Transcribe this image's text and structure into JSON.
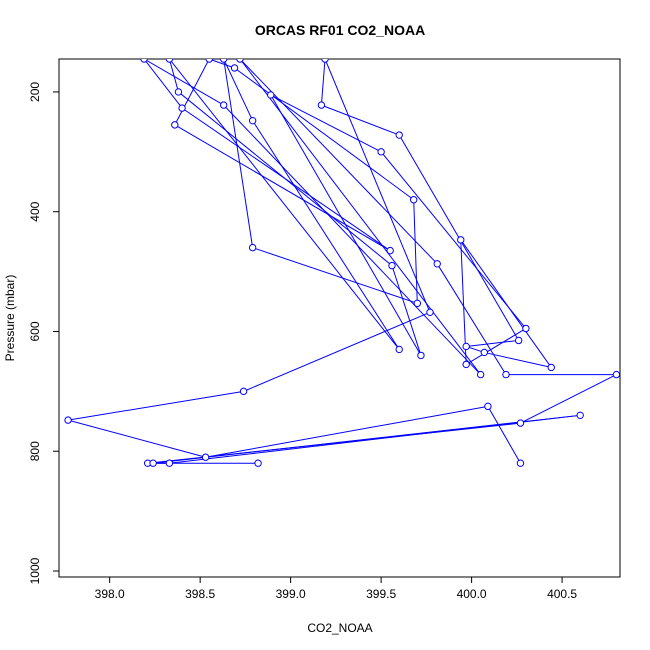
{
  "chart_data": {
    "type": "scatter",
    "title": "ORCAS RF01 CO2_NOAA",
    "xlabel": "CO2_NOAA",
    "ylabel": "Pressure (mbar)",
    "xlim": [
      397.72,
      400.82
    ],
    "ylim": [
      1010,
      145
    ],
    "y_reversed": true,
    "grid": false,
    "xticks": [
      398.0,
      398.5,
      399.0,
      399.5,
      400.0,
      400.5
    ],
    "xtick_labels": [
      "398.0",
      "398.5",
      "399.0",
      "399.5",
      "400.0",
      "400.5"
    ],
    "yticks": [
      200,
      400,
      600,
      800,
      1000
    ],
    "ytick_labels": [
      "200",
      "400",
      "600",
      "800",
      "1000"
    ],
    "series": [
      {
        "color": "#0000ff",
        "marker": "open-circle",
        "connected": true,
        "points": [
          [
            400.27,
            820
          ],
          [
            400.09,
            725
          ],
          [
            398.53,
            810
          ],
          [
            397.77,
            748
          ],
          [
            398.74,
            700
          ],
          [
            399.77,
            568
          ],
          [
            399.19,
            145
          ],
          [
            399.17,
            222
          ],
          [
            399.6,
            272
          ],
          [
            400.26,
            615
          ],
          [
            399.97,
            625
          ],
          [
            400.07,
            635
          ],
          [
            400.44,
            660
          ],
          [
            399.94,
            447
          ],
          [
            399.97,
            655
          ],
          [
            400.3,
            595
          ],
          [
            399.5,
            300
          ],
          [
            398.89,
            205
          ],
          [
            399.72,
            640
          ],
          [
            399.56,
            490
          ],
          [
            398.38,
            200
          ],
          [
            398.33,
            145
          ],
          [
            399.6,
            630
          ],
          [
            398.79,
            248
          ],
          [
            398.63,
            145
          ],
          [
            398.79,
            460
          ],
          [
            399.7,
            553
          ],
          [
            399.68,
            380
          ],
          [
            398.69,
            160
          ],
          [
            398.55,
            145
          ],
          [
            398.36,
            255
          ],
          [
            399.55,
            465
          ],
          [
            398.4,
            227
          ],
          [
            398.19,
            145
          ],
          [
            398.63,
            222
          ],
          [
            400.05,
            672
          ],
          [
            398.72,
            145
          ],
          [
            399.81,
            487
          ],
          [
            400.19,
            672
          ],
          [
            400.8,
            672
          ],
          [
            400.27,
            753
          ],
          [
            398.21,
            820
          ],
          [
            398.33,
            820
          ],
          [
            400.6,
            740
          ],
          [
            398.24,
            820
          ],
          [
            398.82,
            820
          ]
        ]
      }
    ]
  }
}
